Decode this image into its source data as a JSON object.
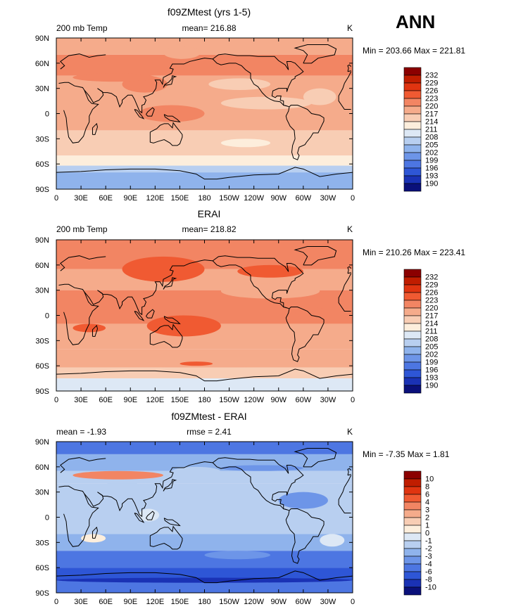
{
  "season": "ANN",
  "chart_data": [
    {
      "type": "heatmap",
      "title": "f09ZMtest (yrs 1-5)",
      "left_label": "200 mb Temp",
      "center_label": "mean= 216.88",
      "unit": "K",
      "min_max": "Min = 203.66 Max = 221.81",
      "xticks": [
        "0",
        "30E",
        "60E",
        "90E",
        "120E",
        "150E",
        "180",
        "150W",
        "120W",
        "90W",
        "60W",
        "30W",
        "0"
      ],
      "yticks": [
        "90N",
        "60N",
        "30N",
        "0",
        "30S",
        "60S",
        "90S"
      ],
      "ylim": [
        -90,
        90
      ],
      "xlim": [
        0,
        360
      ],
      "levels": [
        "232",
        "229",
        "226",
        "223",
        "220",
        "217",
        "214",
        "211",
        "208",
        "205",
        "202",
        "199",
        "196",
        "193",
        "190"
      ],
      "colors": [
        "#8b0000",
        "#c01d00",
        "#e03410",
        "#f05a32",
        "#f28563",
        "#f5ab8b",
        "#f8cdb4",
        "#fdeedc",
        "#dde8f5",
        "#b8cff0",
        "#8fb3ec",
        "#6d95e8",
        "#4d76e2",
        "#2e56d6",
        "#1a32b5",
        "#0a107a"
      ],
      "profile_note": "zonal band fill classes by latitude, north to south",
      "bands": [
        {
          "lat_top": 90,
          "lat_bot": 70,
          "cls": 5
        },
        {
          "lat_top": 70,
          "lat_bot": 45,
          "cls": 4
        },
        {
          "lat_top": 45,
          "lat_bot": -20,
          "cls": 5
        },
        {
          "lat_top": -20,
          "lat_bot": -50,
          "cls": 6
        },
        {
          "lat_top": -50,
          "lat_bot": -62,
          "cls": 7
        },
        {
          "lat_top": -62,
          "lat_bot": -70,
          "cls": 9
        },
        {
          "lat_top": -70,
          "lat_bot": -90,
          "cls": 10
        }
      ]
    },
    {
      "type": "heatmap",
      "title": "ERAI",
      "left_label": "200 mb Temp",
      "center_label": "mean= 218.82",
      "unit": "K",
      "min_max": "Min = 210.26 Max = 223.41",
      "xticks": [
        "0",
        "30E",
        "60E",
        "90E",
        "120E",
        "150E",
        "180",
        "150W",
        "120W",
        "90W",
        "60W",
        "30W",
        "0"
      ],
      "yticks": [
        "90N",
        "60N",
        "30N",
        "0",
        "30S",
        "60S",
        "90S"
      ],
      "ylim": [
        -90,
        90
      ],
      "xlim": [
        0,
        360
      ],
      "levels": [
        "232",
        "229",
        "226",
        "223",
        "220",
        "217",
        "214",
        "211",
        "208",
        "205",
        "202",
        "199",
        "196",
        "193",
        "190"
      ],
      "colors": [
        "#8b0000",
        "#c01d00",
        "#e03410",
        "#f05a32",
        "#f28563",
        "#f5ab8b",
        "#f8cdb4",
        "#fdeedc",
        "#dde8f5",
        "#b8cff0",
        "#8fb3ec",
        "#6d95e8",
        "#4d76e2",
        "#2e56d6",
        "#1a32b5",
        "#0a107a"
      ],
      "bands": [
        {
          "lat_top": 90,
          "lat_bot": 55,
          "cls": 4
        },
        {
          "lat_top": 55,
          "lat_bot": 30,
          "cls": 5
        },
        {
          "lat_top": 30,
          "lat_bot": -10,
          "cls": 4
        },
        {
          "lat_top": -10,
          "lat_bot": -40,
          "cls": 5
        },
        {
          "lat_top": -40,
          "lat_bot": -62,
          "cls": 5
        },
        {
          "lat_top": -62,
          "lat_bot": -75,
          "cls": 6
        },
        {
          "lat_top": -75,
          "lat_bot": -90,
          "cls": 8
        }
      ]
    },
    {
      "type": "heatmap",
      "title": "f09ZMtest - ERAI",
      "left_label": "mean =   -1.93",
      "center_label": "rmse =    2.41",
      "unit": "K",
      "min_max": "Min =   -7.35 Max =    1.81",
      "xticks": [
        "0",
        "30E",
        "60E",
        "90E",
        "120E",
        "150E",
        "180",
        "150W",
        "120W",
        "90W",
        "60W",
        "30W",
        "0"
      ],
      "yticks": [
        "90N",
        "60N",
        "30N",
        "0",
        "30S",
        "60S",
        "90S"
      ],
      "ylim": [
        -90,
        90
      ],
      "xlim": [
        0,
        360
      ],
      "levels": [
        "10",
        "8",
        "6",
        "4",
        "3",
        "2",
        "1",
        "0",
        "-1",
        "-2",
        "-3",
        "-4",
        "-6",
        "-8",
        "-10"
      ],
      "colors": [
        "#8b0000",
        "#c01d00",
        "#e03410",
        "#f05a32",
        "#f28563",
        "#f5ab8b",
        "#f8cdb4",
        "#fdeedc",
        "#dde8f5",
        "#b8cff0",
        "#8fb3ec",
        "#6d95e8",
        "#4d76e2",
        "#2e56d6",
        "#1a32b5",
        "#0a107a"
      ],
      "bands": [
        {
          "lat_top": 90,
          "lat_bot": 75,
          "cls": 12
        },
        {
          "lat_top": 75,
          "lat_bot": 55,
          "cls": 10
        },
        {
          "lat_top": 55,
          "lat_bot": 40,
          "cls": 9
        },
        {
          "lat_top": 40,
          "lat_bot": -20,
          "cls": 9
        },
        {
          "lat_top": -20,
          "lat_bot": -40,
          "cls": 10
        },
        {
          "lat_top": -40,
          "lat_bot": -60,
          "cls": 12
        },
        {
          "lat_top": -60,
          "lat_bot": -75,
          "cls": 13
        },
        {
          "lat_top": -75,
          "lat_bot": -90,
          "cls": 12
        }
      ]
    }
  ]
}
